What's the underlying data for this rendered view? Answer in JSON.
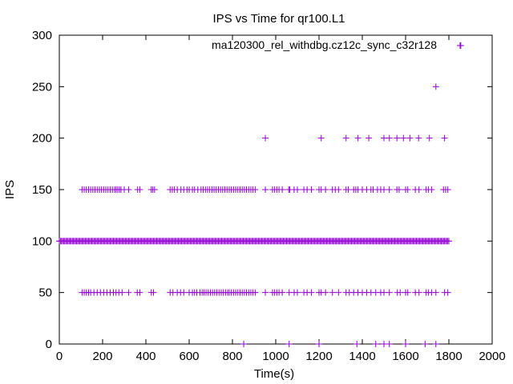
{
  "chart_data": {
    "type": "scatter",
    "title": "IPS vs Time for qr100.L1",
    "xlabel": "Time(s)",
    "ylabel": "IPS",
    "xlim": [
      0,
      2000
    ],
    "ylim": [
      0,
      300
    ],
    "xticks": [
      0,
      200,
      400,
      600,
      800,
      1000,
      1200,
      1400,
      1600,
      1800,
      2000
    ],
    "yticks": [
      0,
      50,
      100,
      150,
      200,
      250,
      300
    ],
    "grid": false,
    "legend_position": "top-right",
    "marker": "+",
    "series": [
      {
        "name": "ma120300_rel_withdbg.cz12c_sync_c32r128",
        "color": "#9400d3",
        "level_100_x_range": [
          0,
          1800
        ],
        "level_150_x": [
          105,
          115,
          125,
          135,
          145,
          155,
          165,
          175,
          185,
          195,
          205,
          215,
          225,
          235,
          245,
          255,
          262,
          270,
          278,
          285,
          300,
          320,
          362,
          372,
          425,
          432,
          440,
          512,
          522,
          532,
          545,
          562,
          575,
          590,
          600,
          615,
          625,
          640,
          655,
          665,
          675,
          685,
          695,
          705,
          715,
          725,
          735,
          745,
          755,
          765,
          775,
          785,
          795,
          805,
          815,
          825,
          835,
          845,
          855,
          865,
          875,
          885,
          895,
          905,
          952,
          985,
          995,
          1005,
          1015,
          1030,
          1060,
          1065,
          1085,
          1100,
          1130,
          1145,
          1165,
          1200,
          1210,
          1230,
          1262,
          1275,
          1290,
          1325,
          1335,
          1360,
          1370,
          1380,
          1400,
          1420,
          1440,
          1450,
          1470,
          1485,
          1500,
          1525,
          1560,
          1570,
          1600,
          1610,
          1645,
          1662,
          1695,
          1705,
          1720,
          1775,
          1785,
          1795
        ],
        "level_50_x": [
          105,
          115,
          125,
          135,
          145,
          160,
          175,
          190,
          205,
          220,
          235,
          250,
          262,
          275,
          290,
          320,
          360,
          372,
          425,
          435,
          512,
          525,
          545,
          560,
          575,
          600,
          615,
          625,
          635,
          650,
          660,
          668,
          678,
          688,
          698,
          708,
          718,
          728,
          738,
          748,
          758,
          768,
          778,
          785,
          795,
          805,
          815,
          825,
          835,
          845,
          855,
          865,
          875,
          885,
          895,
          905,
          952,
          985,
          995,
          1005,
          1015,
          1030,
          1062,
          1085,
          1100,
          1130,
          1145,
          1165,
          1200,
          1210,
          1230,
          1262,
          1290,
          1325,
          1340,
          1360,
          1380,
          1400,
          1420,
          1440,
          1462,
          1485,
          1500,
          1525,
          1562,
          1575,
          1600,
          1610,
          1645,
          1662,
          1695,
          1705,
          1720,
          1740,
          1780,
          1795
        ],
        "level_200_x": [
          952,
          1210,
          1325,
          1380,
          1430,
          1500,
          1525,
          1560,
          1590,
          1620,
          1660,
          1710,
          1780
        ],
        "level_0_x": [
          852,
          1062,
          1200,
          1375,
          1462,
          1500,
          1525,
          1600,
          1690,
          1740
        ],
        "outliers": [
          {
            "x": 1740,
            "y": 250
          },
          {
            "x": 1855,
            "y": 290
          }
        ]
      }
    ]
  }
}
